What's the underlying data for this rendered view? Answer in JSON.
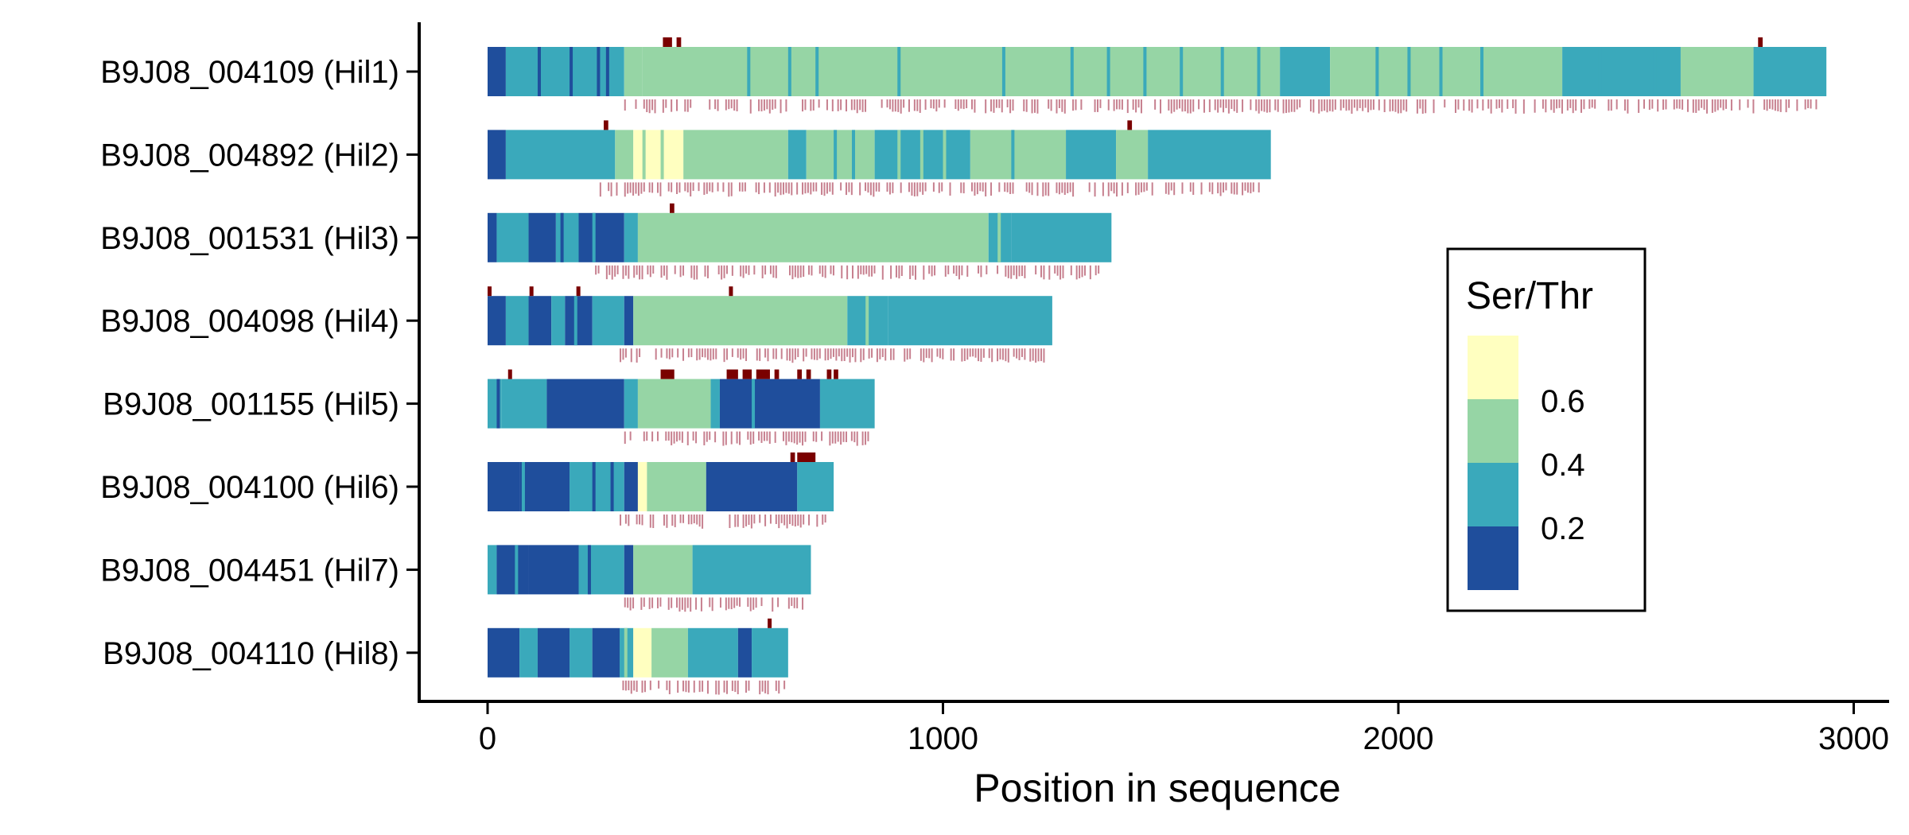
{
  "chart_data": {
    "type": "heatmap",
    "xlabel": "Position in sequence",
    "ylabel": "",
    "xlim": [
      -150,
      3080
    ],
    "x_ticks": [
      0,
      1000,
      2000,
      3000
    ],
    "colors": {
      "le_0.2": "#1f4e9c",
      "0.2_0.4": "#3aa9bb",
      "0.4_0.6": "#96d5a5",
      "ge_0.6": "#ffffc0",
      "motif": "#7a0000",
      "glyco": "#c7808f"
    },
    "legend": {
      "title": "Ser/Thr",
      "labels": [
        "0.6",
        "0.4",
        "0.2"
      ],
      "placement": "right"
    },
    "sequences": [
      {
        "name": "B9J08_004109 (Hil1)",
        "length": 2940,
        "segments": [
          [
            0,
            40,
            1
          ],
          [
            40,
            300,
            2
          ],
          [
            300,
            340,
            3
          ],
          [
            340,
            1740,
            3
          ],
          [
            1740,
            1850,
            2
          ],
          [
            1850,
            2360,
            3
          ],
          [
            2360,
            2620,
            2
          ],
          [
            2620,
            2780,
            3
          ],
          [
            2780,
            2940,
            2
          ]
        ],
        "stripes": [
          [
            110,
            1
          ],
          [
            180,
            1
          ],
          [
            240,
            1
          ],
          [
            260,
            1
          ],
          [
            570,
            2
          ],
          [
            660,
            2
          ],
          [
            720,
            2
          ],
          [
            900,
            2
          ],
          [
            1130,
            2
          ],
          [
            1280,
            2
          ],
          [
            1360,
            2
          ],
          [
            1440,
            2
          ],
          [
            1520,
            2
          ],
          [
            1610,
            2
          ],
          [
            1690,
            2
          ],
          [
            1950,
            2
          ],
          [
            2020,
            2
          ],
          [
            2090,
            2
          ],
          [
            2180,
            2
          ],
          [
            2440,
            2
          ],
          [
            2500,
            2
          ],
          [
            2560,
            2
          ]
        ],
        "motifs": [
          [
            385,
            405
          ],
          [
            415,
            425
          ],
          [
            2790,
            2800
          ]
        ],
        "glyco": [
          300,
          2920
        ]
      },
      {
        "name": "B9J08_004892 (Hil2)",
        "length": 1720,
        "segments": [
          [
            0,
            40,
            1
          ],
          [
            40,
            280,
            2
          ],
          [
            280,
            320,
            3
          ],
          [
            320,
            430,
            4
          ],
          [
            430,
            660,
            3
          ],
          [
            660,
            700,
            2
          ],
          [
            700,
            850,
            3
          ],
          [
            850,
            1060,
            2
          ],
          [
            1060,
            1270,
            3
          ],
          [
            1270,
            1380,
            2
          ],
          [
            1380,
            1450,
            3
          ],
          [
            1450,
            1720,
            2
          ]
        ],
        "stripes": [
          [
            340,
            3
          ],
          [
            380,
            3
          ],
          [
            760,
            2
          ],
          [
            800,
            2
          ],
          [
            900,
            3
          ],
          [
            950,
            3
          ],
          [
            1000,
            3
          ],
          [
            1150,
            2
          ]
        ],
        "motifs": [
          [
            255,
            265
          ],
          [
            1405,
            1415
          ]
        ],
        "glyco": [
          240,
          1700
        ]
      },
      {
        "name": "B9J08_001531 (Hil3)",
        "length": 1370,
        "segments": [
          [
            0,
            20,
            1
          ],
          [
            20,
            90,
            2
          ],
          [
            90,
            150,
            1
          ],
          [
            150,
            200,
            2
          ],
          [
            200,
            300,
            1
          ],
          [
            300,
            330,
            2
          ],
          [
            330,
            1100,
            3
          ],
          [
            1100,
            1150,
            2
          ],
          [
            1150,
            1370,
            2
          ]
        ],
        "stripes": [
          [
            160,
            1
          ],
          [
            230,
            2
          ],
          [
            1120,
            3
          ]
        ],
        "motifs": [
          [
            400,
            410
          ]
        ],
        "glyco": [
          230,
          1350
        ]
      },
      {
        "name": "B9J08_004098 (Hil4)",
        "length": 1240,
        "segments": [
          [
            0,
            40,
            1
          ],
          [
            40,
            90,
            2
          ],
          [
            90,
            140,
            1
          ],
          [
            140,
            170,
            2
          ],
          [
            170,
            230,
            1
          ],
          [
            230,
            300,
            2
          ],
          [
            300,
            320,
            1
          ],
          [
            320,
            790,
            3
          ],
          [
            790,
            880,
            2
          ],
          [
            880,
            1240,
            2
          ]
        ],
        "stripes": [
          [
            190,
            2
          ],
          [
            830,
            3
          ]
        ],
        "motifs": [
          [
            0,
            8
          ],
          [
            92,
            100
          ],
          [
            195,
            203
          ],
          [
            530,
            538
          ]
        ],
        "glyco": [
          290,
          1220
        ]
      },
      {
        "name": "B9J08_001155 (Hil5)",
        "length": 850,
        "segments": [
          [
            0,
            30,
            2
          ],
          [
            30,
            130,
            2
          ],
          [
            130,
            300,
            1
          ],
          [
            300,
            330,
            2
          ],
          [
            330,
            490,
            3
          ],
          [
            490,
            510,
            2
          ],
          [
            510,
            730,
            1
          ],
          [
            730,
            850,
            2
          ]
        ],
        "stripes": [
          [
            20,
            1
          ],
          [
            580,
            2
          ]
        ],
        "motifs": [
          [
            45,
            52
          ],
          [
            380,
            410
          ],
          [
            525,
            550
          ],
          [
            560,
            580
          ],
          [
            590,
            620
          ],
          [
            630,
            640
          ],
          [
            680,
            690
          ],
          [
            700,
            710
          ],
          [
            745,
            755
          ],
          [
            760,
            770
          ]
        ],
        "glyco": [
          300,
          840
        ]
      },
      {
        "name": "B9J08_004100 (Hil6)",
        "length": 760,
        "segments": [
          [
            0,
            70,
            1
          ],
          [
            70,
            180,
            1
          ],
          [
            180,
            300,
            2
          ],
          [
            300,
            330,
            1
          ],
          [
            330,
            350,
            4
          ],
          [
            350,
            480,
            3
          ],
          [
            480,
            680,
            1
          ],
          [
            680,
            760,
            2
          ]
        ],
        "stripes": [
          [
            75,
            2
          ],
          [
            230,
            1
          ],
          [
            270,
            1
          ]
        ],
        "motifs": [
          [
            665,
            675
          ],
          [
            680,
            720
          ]
        ],
        "glyco": [
          290,
          740
        ]
      },
      {
        "name": "B9J08_004451 (Hil7)",
        "length": 710,
        "segments": [
          [
            0,
            20,
            2
          ],
          [
            20,
            90,
            1
          ],
          [
            90,
            200,
            1
          ],
          [
            200,
            300,
            2
          ],
          [
            300,
            320,
            1
          ],
          [
            320,
            450,
            3
          ],
          [
            450,
            710,
            2
          ]
        ],
        "stripes": [
          [
            60,
            2
          ],
          [
            220,
            1
          ]
        ],
        "motifs": [],
        "glyco": [
          300,
          700
        ]
      },
      {
        "name": "B9J08_004110 (Hil8)",
        "length": 660,
        "segments": [
          [
            0,
            70,
            1
          ],
          [
            70,
            110,
            2
          ],
          [
            110,
            180,
            1
          ],
          [
            180,
            230,
            2
          ],
          [
            230,
            290,
            1
          ],
          [
            290,
            320,
            2
          ],
          [
            320,
            360,
            4
          ],
          [
            360,
            440,
            3
          ],
          [
            440,
            550,
            2
          ],
          [
            550,
            580,
            1
          ],
          [
            580,
            660,
            2
          ]
        ],
        "stripes": [
          [
            300,
            3
          ]
        ],
        "motifs": [
          [
            615,
            623
          ]
        ],
        "glyco": [
          290,
          650
        ]
      }
    ]
  }
}
